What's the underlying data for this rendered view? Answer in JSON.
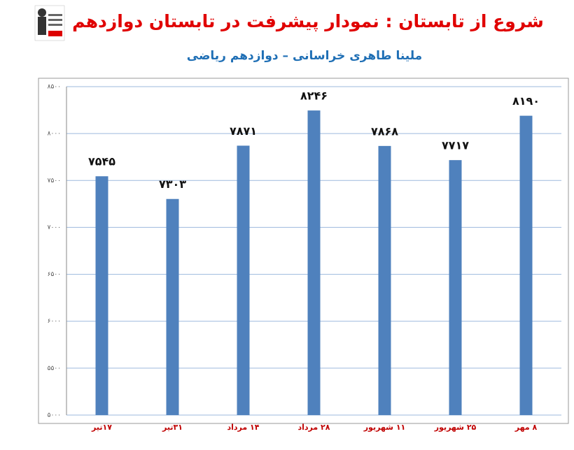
{
  "chart_data": {
    "type": "bar",
    "title": "شروع از تابستان : نمودار پیشرفت در تابستان دوازدهم",
    "subtitle": "ملینا طاهری خراسانی – دوازدهم ریاضی",
    "categories": [
      "۱۷تیر",
      "۳۱تیر",
      "۱۴ مرداد",
      "۲۸ مرداد",
      "۱۱ شهریور",
      "۲۵ شهریور",
      "۸ مهر"
    ],
    "values": [
      7545,
      7303,
      7871,
      8246,
      7868,
      7717,
      8190
    ],
    "value_labels": [
      "۷۵۴۵",
      "۷۳۰۳",
      "۷۸۷۱",
      "۸۲۴۶",
      "۷۸۶۸",
      "۷۷۱۷",
      "۸۱۹۰"
    ],
    "color": "#4f81bd",
    "ylim": [
      5000,
      8500
    ],
    "yticks": [
      {
        "value": 5000,
        "label": "۵۰۰۰"
      },
      {
        "value": 5500,
        "label": "۵۵۰۰"
      },
      {
        "value": 6000,
        "label": "۶۰۰۰"
      },
      {
        "value": 6500,
        "label": "۶۵۰۰"
      },
      {
        "value": 7000,
        "label": "۷۰۰۰"
      },
      {
        "value": 7500,
        "label": "۷۵۰۰"
      },
      {
        "value": 8000,
        "label": "۸۰۰۰"
      },
      {
        "value": 8500,
        "label": "۸۵۰۰"
      }
    ],
    "grid": true
  }
}
